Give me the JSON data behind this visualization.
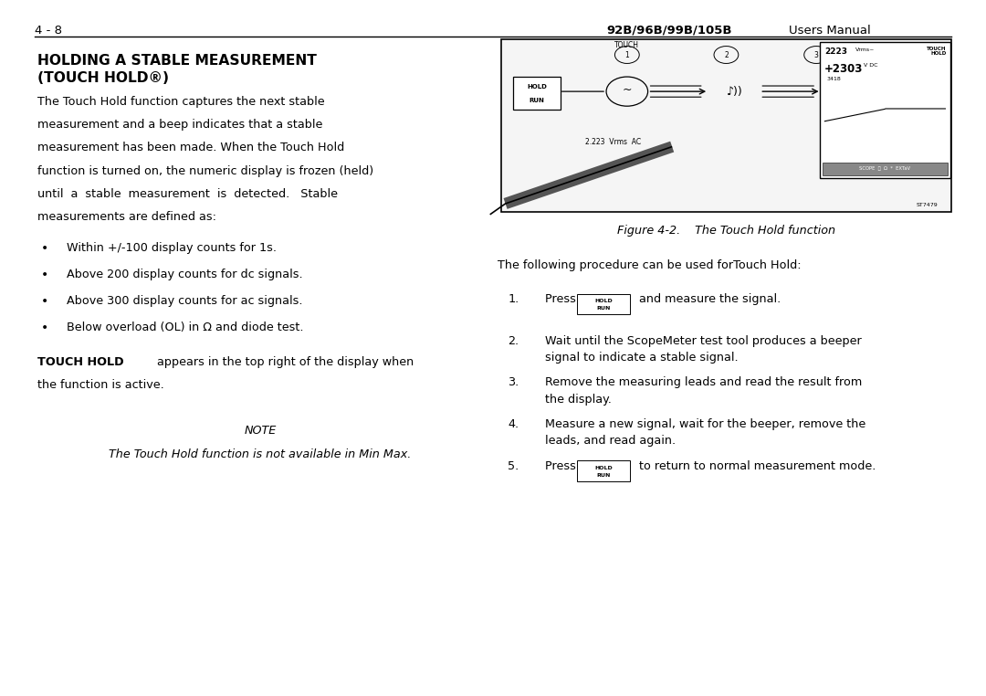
{
  "page_number": "4 - 8",
  "header_model": "92B/96B/99B/105B",
  "header_right": "Users Manual",
  "section_title_line1": "HOLDING A STABLE MEASUREMENT",
  "section_title_line2": "(TOUCH HOLD®)",
  "body_lines": [
    "The Touch Hold function captures the next stable",
    "measurement and a beep indicates that a stable",
    "measurement has been made. When the Touch Hold",
    "function is turned on, the numeric display is frozen (held)",
    "until  a  stable  measurement  is  detected.   Stable",
    "measurements are defined as:"
  ],
  "bullets": [
    "Within +/-100 display counts for 1s.",
    "Above 200 display counts for dc signals.",
    "Above 300 display counts for ac signals.",
    "Below overload (OL) in Ω and diode test."
  ],
  "touch_hold_bold": "TOUCH HOLD",
  "touch_hold_rest": " appears in the top right of the display when",
  "touch_hold_line2": "the function is active.",
  "note_label": "NOTE",
  "note_italic": "The Touch Hold function is not available in Min Max.",
  "figure_caption": "Figure 4-2.    The Touch Hold function",
  "procedure_intro": "The following procedure can be used forTouch Hold:",
  "step1_pre": "Press ",
  "step1_post": " and measure the signal.",
  "step2": "Wait until the ScopeMeter test tool produces a beeper\nsignal to indicate a stable signal.",
  "step3": "Remove the measuring leads and read the result from\nthe display.",
  "step4": "Measure a new signal, wait for the beeper, remove the\nleads, and read again.",
  "step5_pre": "Press ",
  "step5_post": " to return to normal measurement mode.",
  "bg_color": "#ffffff",
  "text_color": "#000000",
  "header_line_color": "#000000"
}
